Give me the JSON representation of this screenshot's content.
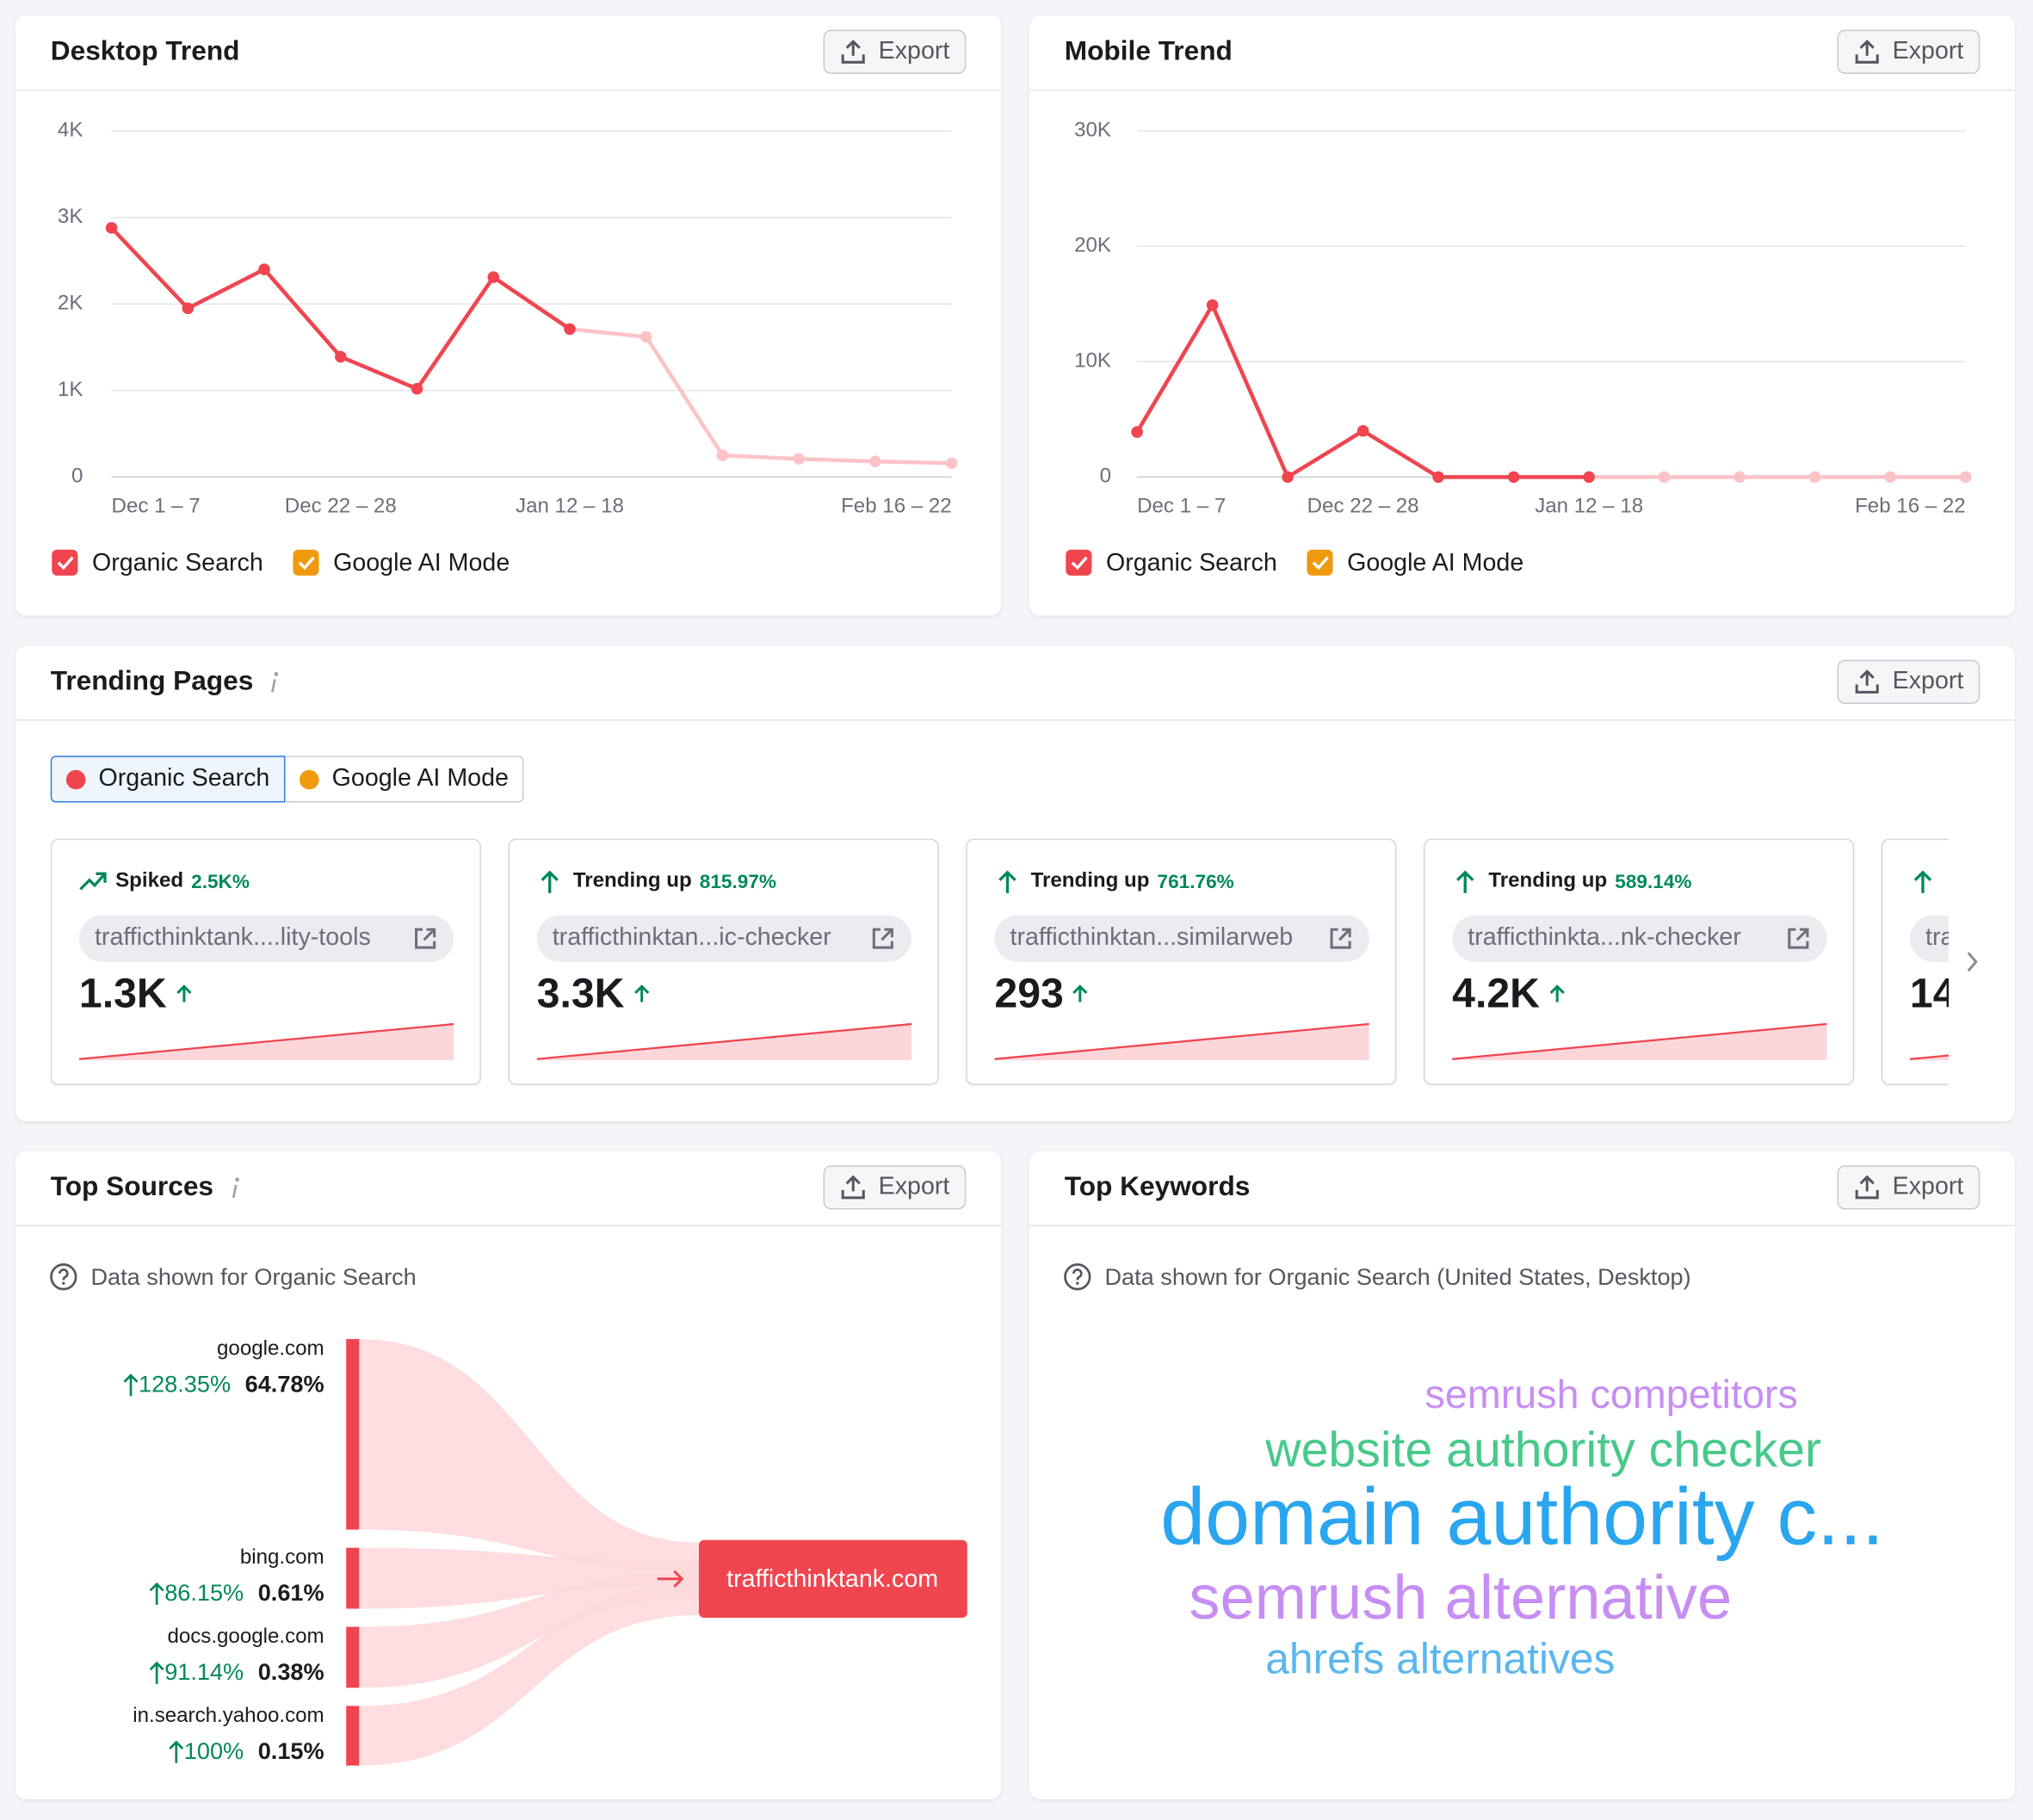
{
  "export_label": "Export",
  "chart_data": [
    {
      "type": "line",
      "title": "Desktop Trend",
      "categories": [
        "Dec 1 – 7",
        null,
        null,
        "Dec 22 – 28",
        null,
        null,
        "Jan 12 – 18",
        null,
        null,
        null,
        null,
        "Feb 16 – 22"
      ],
      "series": [
        {
          "name": "Organic Search",
          "color": "#f0454f",
          "values": [
            2880,
            1950,
            2400,
            1390,
            1020,
            2310,
            1710,
            1620,
            250,
            210,
            180,
            160
          ]
        },
        {
          "name": "Google AI Mode",
          "color": "#ef9a0e",
          "values": [
            null,
            null,
            null,
            null,
            null,
            null,
            null,
            null,
            null,
            null,
            null,
            null
          ]
        }
      ],
      "ylim": [
        0,
        4000
      ],
      "yticks": [
        0,
        {
          "value": 1000,
          "label": "1K"
        },
        {
          "value": 2000,
          "label": "2K"
        },
        {
          "value": 3000,
          "label": "3K"
        },
        {
          "value": 4000,
          "label": "4K"
        }
      ],
      "grid": true,
      "faded_color": "#fcc3c7",
      "faded_from": 6
    },
    {
      "type": "line",
      "title": "Mobile Trend",
      "categories": [
        "Dec 1 – 7",
        null,
        null,
        "Dec 22 – 28",
        null,
        null,
        "Jan 12 – 18",
        null,
        null,
        null,
        null,
        "Feb 16 – 22"
      ],
      "series": [
        {
          "name": "Organic Search",
          "color": "#f0454f",
          "values": [
            3900,
            14900,
            0,
            4000,
            0,
            0,
            0,
            0,
            0,
            0,
            0,
            0
          ]
        },
        {
          "name": "Google AI Mode",
          "color": "#ef9a0e",
          "values": [
            null,
            null,
            null,
            null,
            null,
            null,
            null,
            null,
            null,
            null,
            null,
            null
          ]
        }
      ],
      "ylim": [
        0,
        30000
      ],
      "yticks": [
        0,
        {
          "value": 10000,
          "label": "10K"
        },
        {
          "value": 20000,
          "label": "20K"
        },
        {
          "value": 30000,
          "label": "30K"
        }
      ],
      "grid": true,
      "faded_color": "#fcc3c7",
      "faded_from": 6
    }
  ],
  "trending_pages": {
    "title": "Trending Pages",
    "tabs": [
      {
        "label": "Organic Search",
        "color": "#f0454f"
      },
      {
        "label": "Google AI Mode",
        "color": "#ef9a0e"
      }
    ],
    "cards": [
      {
        "trend": "Spiked",
        "change": "2.5K%",
        "url": "trafficthinktank....lity-tools",
        "value": "1.3K"
      },
      {
        "trend": "Trending up",
        "change": "815.97%",
        "url": "trafficthinktan...ic-checker",
        "value": "3.3K"
      },
      {
        "trend": "Trending up",
        "change": "761.76%",
        "url": "trafficthinktan...similarweb",
        "value": "293"
      },
      {
        "trend": "Trending up",
        "change": "589.14%",
        "url": "trafficthinkta...nk-checker",
        "value": "4.2K"
      },
      {
        "url": "tra",
        "value": "14"
      }
    ]
  },
  "top_sources": {
    "title": "Top Sources",
    "note": "Data shown for Organic Search",
    "target": "trafficthinktank.com",
    "sources": [
      {
        "name": "google.com",
        "change": "128.35%",
        "share": "64.78%"
      },
      {
        "name": "bing.com",
        "change": "86.15%",
        "share": "0.61%"
      },
      {
        "name": "docs.google.com",
        "change": "91.14%",
        "share": "0.38%"
      },
      {
        "name": "in.search.yahoo.com",
        "change": "100%",
        "share": "0.15%"
      }
    ]
  },
  "top_keywords": {
    "title": "Top Keywords",
    "note": "Data shown for Organic Search (United States, Desktop)",
    "words": [
      {
        "text": "semrush competitors",
        "color": "#c68ef3"
      },
      {
        "text": "website authority checker",
        "color": "#48c98b"
      },
      {
        "text": "domain authority c...",
        "color": "#2aa5ef"
      },
      {
        "text": "semrush alternative",
        "color": "#c68ef3"
      },
      {
        "text": "ahrefs alternatives",
        "color": "#5ab6ee"
      }
    ]
  }
}
